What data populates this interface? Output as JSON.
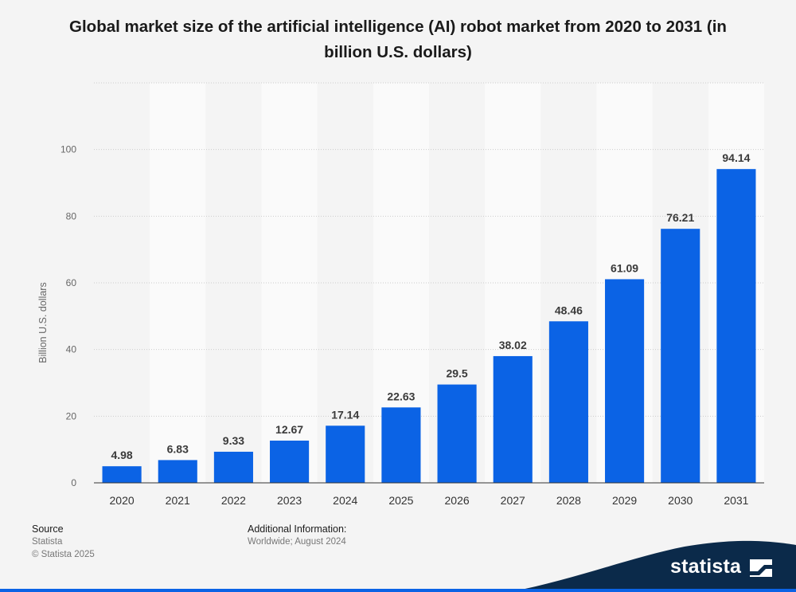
{
  "chart_data": {
    "type": "bar",
    "title": "Global market size of the artificial intelligence (AI) robot market from 2020 to 2031 (in billion U.S. dollars)",
    "xlabel": "",
    "ylabel": "Billion U.S. dollars",
    "categories": [
      "2020",
      "2021",
      "2022",
      "2023",
      "2024",
      "2025",
      "2026",
      "2027",
      "2028",
      "2029",
      "2030",
      "2031"
    ],
    "values": [
      4.98,
      6.83,
      9.33,
      12.67,
      17.14,
      22.63,
      29.5,
      38.02,
      48.46,
      61.09,
      76.21,
      94.14
    ],
    "value_labels": [
      "4.98",
      "6.83",
      "9.33",
      "12.67",
      "17.14",
      "22.63",
      "29.5",
      "38.02",
      "48.46",
      "61.09",
      "76.21",
      "94.14"
    ],
    "ylim": [
      0,
      120
    ],
    "yticks": [
      0,
      20,
      40,
      60,
      80,
      100
    ],
    "ytick_labels": [
      "0",
      "20",
      "40",
      "60",
      "80",
      "100"
    ],
    "grid": true,
    "bar_color": "#0b63e5"
  },
  "footer": {
    "source_heading": "Source",
    "source_name": "Statista",
    "copyright": "© Statista 2025",
    "info_heading": "Additional Information:",
    "info_text": "Worldwide; August 2024"
  },
  "brand": {
    "name": "statista",
    "accent_color": "#0b2a4a",
    "highlight_color": "#0b63e5"
  }
}
